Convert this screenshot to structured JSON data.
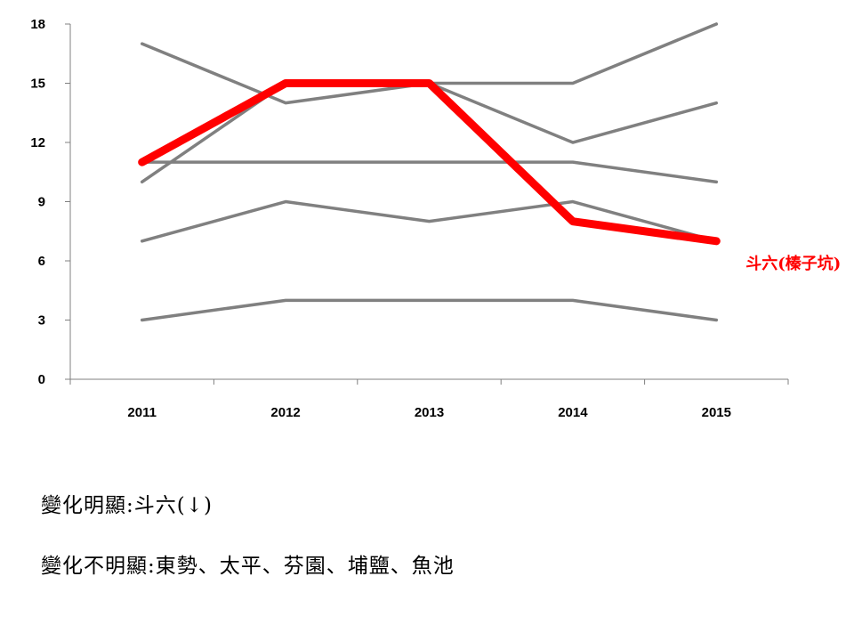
{
  "chart_data": {
    "type": "line",
    "categories": [
      "2011",
      "2012",
      "2013",
      "2014",
      "2015"
    ],
    "ylim": [
      0,
      18
    ],
    "yticks": [
      0,
      3,
      6,
      9,
      12,
      15,
      18
    ],
    "grid": false,
    "series": [
      {
        "values": [
          17,
          14,
          15,
          15,
          18
        ],
        "color": "#808080",
        "highlight": false
      },
      {
        "values": [
          10,
          15,
          15,
          12,
          14
        ],
        "color": "#808080",
        "highlight": false
      },
      {
        "values": [
          11,
          11,
          11,
          11,
          10
        ],
        "color": "#808080",
        "highlight": false
      },
      {
        "values": [
          7,
          9,
          8,
          9,
          7
        ],
        "color": "#808080",
        "highlight": false
      },
      {
        "values": [
          3,
          4,
          4,
          4,
          3
        ],
        "color": "#808080",
        "highlight": false
      },
      {
        "name": "斗六(榛子坑)",
        "values": [
          11,
          15,
          15,
          8,
          7
        ],
        "color": "#ff0000",
        "highlight": true
      }
    ]
  },
  "notes": {
    "line1": "變化明顯:斗六(↓)",
    "line2": "變化不明顯:東勢、太平、芬園、埔鹽、魚池"
  }
}
